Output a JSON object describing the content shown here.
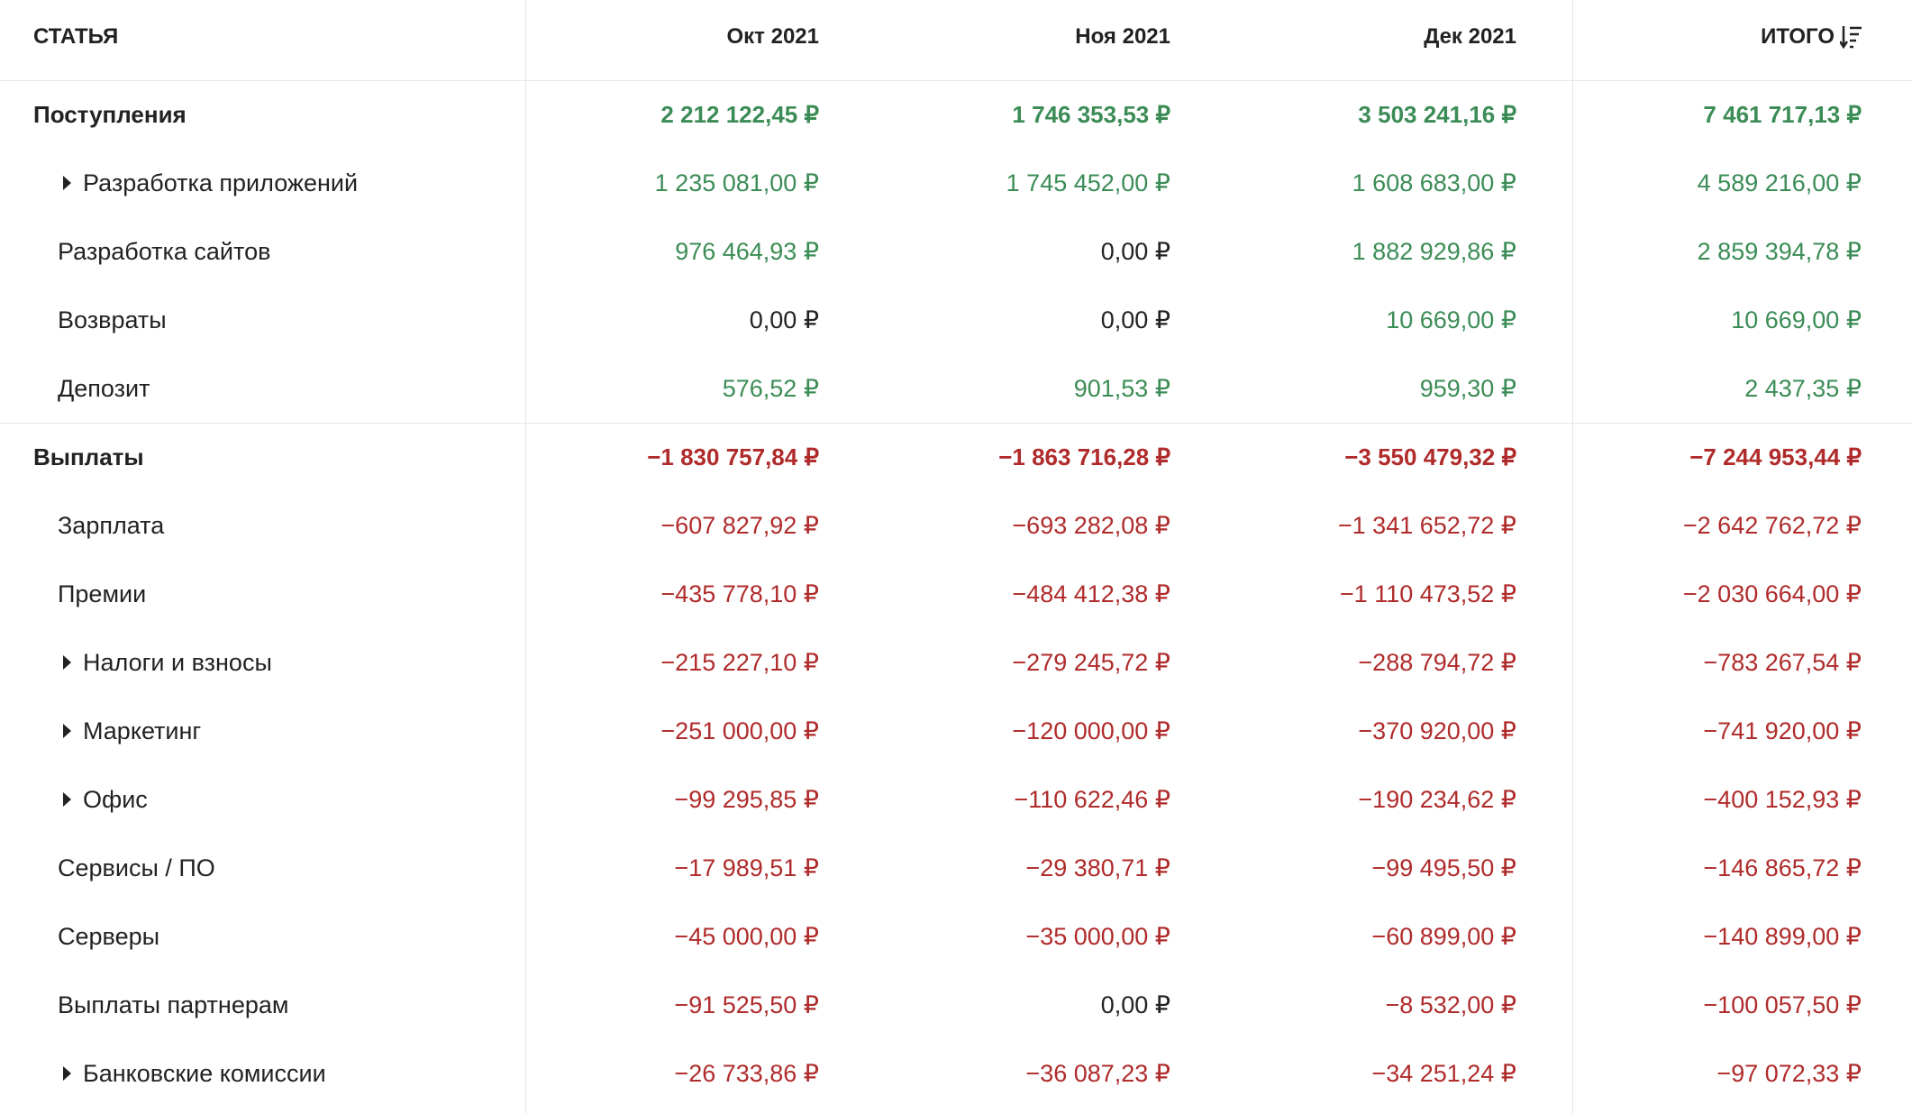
{
  "header": {
    "article": "СТАТЬЯ",
    "columns": [
      "Окт 2021",
      "Ноя 2021",
      "Дек 2021"
    ],
    "total": "ИТОГО"
  },
  "colors": {
    "positive": "#3b8c56",
    "negative": "#b02b2b",
    "zero": "#222222"
  },
  "rows": [
    {
      "label": "Поступления",
      "summary": true,
      "cells": [
        "2 212 122,45 ₽",
        "1 746 353,53 ₽",
        "3 503 241,16 ₽",
        "7 461 717,13 ₽"
      ]
    },
    {
      "label": "Разработка приложений",
      "expandable": true,
      "cells": [
        "1 235 081,00 ₽",
        "1 745 452,00 ₽",
        "1 608 683,00 ₽",
        "4 589 216,00 ₽"
      ]
    },
    {
      "label": "Разработка сайтов",
      "cells": [
        "976 464,93 ₽",
        "0,00 ₽",
        "1 882 929,86 ₽",
        "2 859 394,78 ₽"
      ]
    },
    {
      "label": "Возвраты",
      "cells": [
        "0,00 ₽",
        "0,00 ₽",
        "10 669,00 ₽",
        "10 669,00 ₽"
      ]
    },
    {
      "label": "Депозит",
      "cells": [
        "576,52 ₽",
        "901,53 ₽",
        "959,30 ₽",
        "2 437,35 ₽"
      ]
    },
    {
      "label": "Выплаты",
      "summary": true,
      "cells": [
        "−1 830 757,84 ₽",
        "−1 863 716,28 ₽",
        "−3 550 479,32 ₽",
        "−7 244 953,44 ₽"
      ]
    },
    {
      "label": "Зарплата",
      "cells": [
        "−607 827,92 ₽",
        "−693 282,08 ₽",
        "−1 341 652,72 ₽",
        "−2 642 762,72 ₽"
      ]
    },
    {
      "label": "Премии",
      "cells": [
        "−435 778,10 ₽",
        "−484 412,38 ₽",
        "−1 110 473,52 ₽",
        "−2 030 664,00 ₽"
      ]
    },
    {
      "label": "Налоги и взносы",
      "expandable": true,
      "cells": [
        "−215 227,10 ₽",
        "−279 245,72 ₽",
        "−288 794,72 ₽",
        "−783 267,54 ₽"
      ]
    },
    {
      "label": "Маркетинг",
      "expandable": true,
      "cells": [
        "−251 000,00 ₽",
        "−120 000,00 ₽",
        "−370 920,00 ₽",
        "−741 920,00 ₽"
      ]
    },
    {
      "label": "Офис",
      "expandable": true,
      "cells": [
        "−99 295,85 ₽",
        "−110 622,46 ₽",
        "−190 234,62 ₽",
        "−400 152,93 ₽"
      ]
    },
    {
      "label": "Сервисы / ПО",
      "cells": [
        "−17 989,51 ₽",
        "−29 380,71 ₽",
        "−99 495,50 ₽",
        "−146 865,72 ₽"
      ]
    },
    {
      "label": "Серверы",
      "cells": [
        "−45 000,00 ₽",
        "−35 000,00 ₽",
        "−60 899,00 ₽",
        "−140 899,00 ₽"
      ]
    },
    {
      "label": "Выплаты партнерам",
      "cells": [
        "−91 525,50 ₽",
        "0,00 ₽",
        "−8 532,00 ₽",
        "−100 057,50 ₽"
      ]
    },
    {
      "label": "Банковские комиссии",
      "expandable": true,
      "cells": [
        "−26 733,86 ₽",
        "−36 087,23 ₽",
        "−34 251,24 ₽",
        "−97 072,33 ₽"
      ]
    }
  ]
}
